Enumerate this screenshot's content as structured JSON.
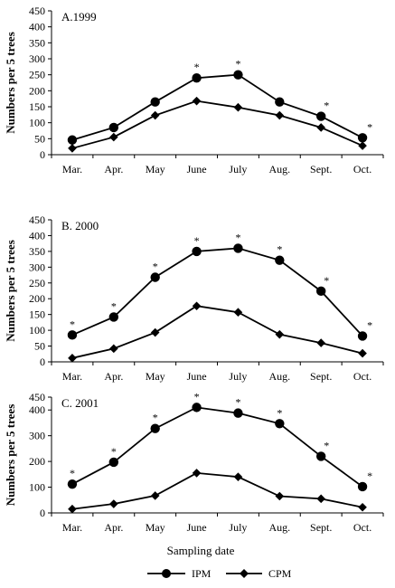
{
  "figure": {
    "x_title": "Sampling date",
    "legend": [
      {
        "label": "IPM",
        "marker": "circle"
      },
      {
        "label": "CPM",
        "marker": "diamond"
      }
    ],
    "sig_mark": "*"
  },
  "chart_data": [
    {
      "type": "line",
      "panel_label": "A.1999",
      "ylabel": "Numbers per 5 trees",
      "xlabel": "",
      "categories": [
        "Mar.",
        "Apr.",
        "May",
        "June",
        "July",
        "Aug.",
        "Sept.",
        "Oct."
      ],
      "ylim": [
        0,
        450
      ],
      "yticks": [
        0,
        50,
        100,
        150,
        200,
        250,
        300,
        350,
        400,
        450
      ],
      "series": [
        {
          "name": "IPM",
          "marker": "circle",
          "values": [
            46,
            85,
            165,
            240,
            250,
            165,
            120,
            53
          ]
        },
        {
          "name": "CPM",
          "marker": "diamond",
          "values": [
            20,
            55,
            123,
            168,
            148,
            123,
            85,
            28
          ]
        }
      ],
      "significant": [
        false,
        false,
        false,
        true,
        true,
        false,
        true,
        true
      ]
    },
    {
      "type": "line",
      "panel_label": "B. 2000",
      "ylabel": "Numbers per 5 trees",
      "xlabel": "",
      "categories": [
        "Mar.",
        "Apr.",
        "May",
        "June",
        "July",
        "Aug.",
        "Sept.",
        "Oct."
      ],
      "ylim": [
        0,
        450
      ],
      "yticks": [
        0,
        50,
        100,
        150,
        200,
        250,
        300,
        350,
        400,
        450
      ],
      "series": [
        {
          "name": "IPM",
          "marker": "circle",
          "values": [
            85,
            142,
            268,
            350,
            360,
            322,
            224,
            82
          ]
        },
        {
          "name": "CPM",
          "marker": "diamond",
          "values": [
            12,
            42,
            93,
            177,
            157,
            87,
            60,
            27
          ]
        }
      ],
      "significant": [
        true,
        true,
        true,
        true,
        true,
        true,
        true,
        true
      ]
    },
    {
      "type": "line",
      "panel_label": "C. 2001",
      "ylabel": "Numbers per 5 trees",
      "xlabel": "Sampling date",
      "categories": [
        "Mar.",
        "Apr.",
        "May",
        "June",
        "July",
        "Aug.",
        "Sept.",
        "Oct."
      ],
      "ylim": [
        0,
        450
      ],
      "yticks": [
        0,
        100,
        200,
        300,
        400,
        450
      ],
      "series": [
        {
          "name": "IPM",
          "marker": "circle",
          "values": [
            112,
            197,
            328,
            410,
            388,
            347,
            220,
            102
          ]
        },
        {
          "name": "CPM",
          "marker": "diamond",
          "values": [
            15,
            35,
            67,
            155,
            140,
            65,
            55,
            22
          ]
        }
      ],
      "significant": [
        true,
        true,
        true,
        true,
        true,
        true,
        true,
        true
      ]
    }
  ]
}
